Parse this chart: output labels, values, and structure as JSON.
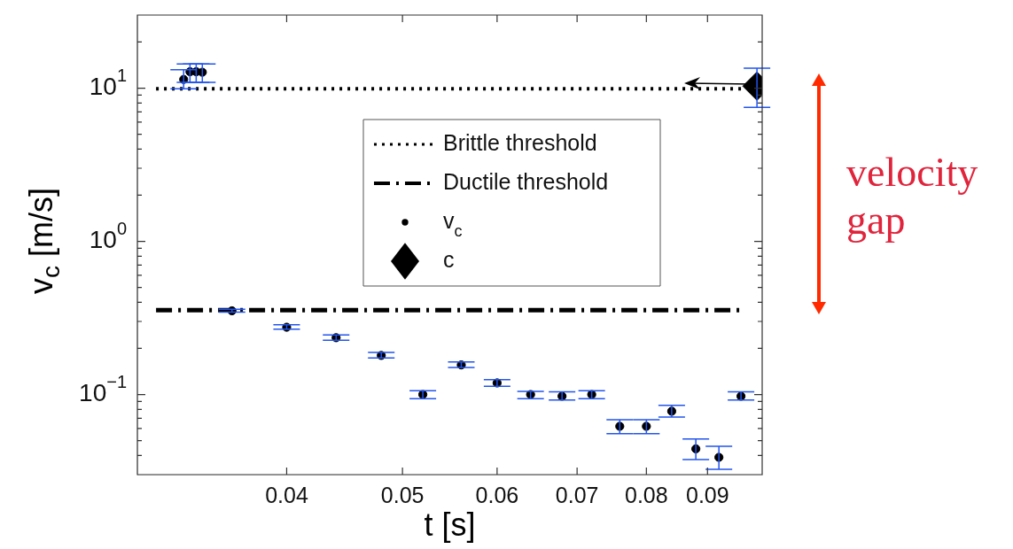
{
  "chart_data": {
    "type": "scatter",
    "xlabel": "t [s]",
    "ylabel": "v$_{c}$ [m/s]",
    "log": "xy",
    "grid": false,
    "legend": "top",
    "xlim": [
      0.03,
      0.1
    ],
    "xticks": [
      0.04,
      0.05,
      0.06,
      0.07,
      0.08,
      0.09
    ],
    "ylim": [
      0.03,
      30
    ],
    "yticks": [
      {
        "value": 0.04,
        "label": null
      },
      {
        "value": 0.05,
        "label": null
      },
      {
        "value": 0.06,
        "label": null
      },
      {
        "value": 0.07,
        "label": null
      },
      {
        "value": 0.08,
        "label": null
      },
      {
        "value": 0.09,
        "label": null
      },
      {
        "value": 0.1,
        "label": "10$^{−1}$"
      },
      {
        "value": 0.2,
        "label": null
      },
      {
        "value": 0.3,
        "label": null
      },
      {
        "value": 0.4,
        "label": null
      },
      {
        "value": 0.5,
        "label": null
      },
      {
        "value": 0.6,
        "label": null
      },
      {
        "value": 0.7,
        "label": null
      },
      {
        "value": 0.8,
        "label": null
      },
      {
        "value": 0.9,
        "label": null
      },
      {
        "value": 1,
        "label": "10$^{0}$"
      },
      {
        "value": 2,
        "label": null
      },
      {
        "value": 3,
        "label": null
      },
      {
        "value": 4,
        "label": null
      },
      {
        "value": 5,
        "label": null
      },
      {
        "value": 6,
        "label": null
      },
      {
        "value": 7,
        "label": null
      },
      {
        "value": 8,
        "label": null
      },
      {
        "value": 9,
        "label": null
      },
      {
        "value": 10,
        "label": "10$^{1}$"
      },
      {
        "value": 20,
        "label": null
      }
    ],
    "series": [
      {
        "name": "Brittle threshold",
        "type": "line",
        "line_style": "dotted",
        "marker": "none",
        "color": "#000000",
        "x": [
          0.0311,
          0.0963
        ],
        "values": [
          9.9,
          9.9
        ]
      },
      {
        "name": "Ductile threshold",
        "type": "line",
        "line_style": "dashed",
        "marker": "none",
        "color": "#000000",
        "x": [
          0.0311,
          0.0963
        ],
        "values": [
          0.355,
          0.355
        ]
      },
      {
        "name": "v$_{c}$",
        "type": "scatter",
        "marker": "circle",
        "color": "#000000",
        "x": [
          0.0328,
          0.0332,
          0.0336,
          0.034,
          0.036,
          0.04,
          0.044,
          0.048,
          0.052,
          0.056,
          0.06,
          0.064,
          0.068,
          0.072,
          0.076,
          0.08,
          0.084,
          0.088,
          0.092,
          0.096
        ],
        "values": [
          11.4,
          12.8,
          12.8,
          12.7,
          0.352,
          0.275,
          0.235,
          0.18,
          0.1,
          0.156,
          0.119,
          0.1,
          0.0975,
          0.1,
          0.062,
          0.062,
          0.0778,
          0.0442,
          0.0389,
          0.0975
        ],
        "errors": [
          [
            9.9,
            13.2
          ],
          [
            10.9,
            14.4
          ],
          [
            10.9,
            14.4
          ],
          [
            10.9,
            14.4
          ],
          [
            0.345,
            0.36
          ],
          [
            0.267,
            0.285
          ],
          [
            0.226,
            0.245
          ],
          [
            0.173,
            0.188
          ],
          [
            0.094,
            0.106
          ],
          [
            0.15,
            0.163
          ],
          [
            0.113,
            0.125
          ],
          [
            0.094,
            0.105
          ],
          [
            0.092,
            0.104
          ],
          [
            0.094,
            0.106
          ],
          [
            0.0556,
            0.0685
          ],
          [
            0.0556,
            0.0685
          ],
          [
            0.0712,
            0.0851
          ],
          [
            0.0376,
            0.0513
          ],
          [
            0.0325,
            0.0459
          ],
          [
            0.092,
            0.104
          ]
        ]
      },
      {
        "name": "c",
        "type": "scatter",
        "marker": "diamond",
        "color": "#000000",
        "x": [
          0.099
        ],
        "values": [
          10.3
        ],
        "errors": [
          [
            7.5,
            13.5
          ]
        ]
      }
    ],
    "annotations": [
      "velocity gap"
    ]
  }
}
